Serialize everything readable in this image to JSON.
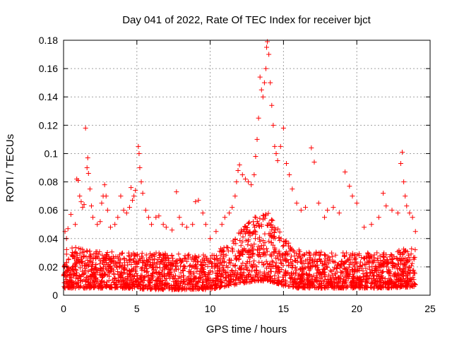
{
  "chart_data": {
    "type": "scatter",
    "title": "Day 041 of 2022, Rate Of TEC Index for receiver bjct",
    "xlabel": "GPS time / hours",
    "ylabel": "ROTI / TECUs",
    "xlim": [
      0,
      25
    ],
    "ylim": [
      0,
      0.18
    ],
    "xticks": [
      0,
      5,
      10,
      15,
      20,
      25
    ],
    "xtick_labels": [
      "0",
      "5",
      "10",
      "15",
      "20",
      "25"
    ],
    "yticks": [
      0,
      0.02,
      0.04,
      0.06,
      0.08,
      0.1,
      0.12,
      0.14,
      0.16,
      0.18
    ],
    "ytick_labels": [
      "0",
      "0.02",
      "0.04",
      "0.06",
      "0.08",
      "0.1",
      "0.12",
      "0.14",
      "0.16",
      "0.18"
    ],
    "grid": true,
    "marker": "+",
    "marker_color": "#ff0000",
    "series": [
      {
        "points": [
          [
            0.1,
            0.045
          ],
          [
            0.2,
            0.04
          ],
          [
            0.3,
            0.047
          ],
          [
            0.5,
            0.057
          ],
          [
            0.8,
            0.05
          ],
          [
            0.9,
            0.082
          ],
          [
            1.0,
            0.081
          ],
          [
            1.1,
            0.07
          ],
          [
            1.2,
            0.066
          ],
          [
            1.3,
            0.062
          ],
          [
            1.4,
            0.064
          ],
          [
            1.5,
            0.118
          ],
          [
            1.6,
            0.09
          ],
          [
            1.65,
            0.097
          ],
          [
            1.7,
            0.086
          ],
          [
            1.8,
            0.075
          ],
          [
            1.9,
            0.063
          ],
          [
            2.0,
            0.055
          ],
          [
            2.3,
            0.05
          ],
          [
            2.5,
            0.052
          ],
          [
            2.6,
            0.065
          ],
          [
            2.7,
            0.07
          ],
          [
            2.8,
            0.078
          ],
          [
            2.9,
            0.07
          ],
          [
            3.0,
            0.06
          ],
          [
            3.2,
            0.048
          ],
          [
            3.5,
            0.05
          ],
          [
            3.7,
            0.055
          ],
          [
            3.9,
            0.07
          ],
          [
            4.1,
            0.06
          ],
          [
            4.3,
            0.058
          ],
          [
            4.5,
            0.062
          ],
          [
            4.6,
            0.076
          ],
          [
            4.7,
            0.067
          ],
          [
            4.8,
            0.07
          ],
          [
            4.9,
            0.074
          ],
          [
            5.1,
            0.105
          ],
          [
            5.15,
            0.1
          ],
          [
            5.2,
            0.09
          ],
          [
            5.3,
            0.08
          ],
          [
            5.4,
            0.072
          ],
          [
            5.6,
            0.06
          ],
          [
            5.8,
            0.055
          ],
          [
            6.0,
            0.05
          ],
          [
            6.3,
            0.055
          ],
          [
            6.5,
            0.056
          ],
          [
            6.8,
            0.05
          ],
          [
            7.0,
            0.048
          ],
          [
            7.4,
            0.046
          ],
          [
            7.7,
            0.073
          ],
          [
            7.9,
            0.055
          ],
          [
            8.1,
            0.05
          ],
          [
            8.4,
            0.048
          ],
          [
            8.8,
            0.05
          ],
          [
            9.0,
            0.066
          ],
          [
            9.2,
            0.067
          ],
          [
            9.5,
            0.058
          ],
          [
            9.7,
            0.05
          ],
          [
            10.0,
            0.04
          ],
          [
            10.4,
            0.045
          ],
          [
            10.8,
            0.05
          ],
          [
            11.0,
            0.055
          ],
          [
            11.3,
            0.058
          ],
          [
            11.5,
            0.062
          ],
          [
            11.7,
            0.07
          ],
          [
            11.8,
            0.08
          ],
          [
            11.9,
            0.088
          ],
          [
            12.0,
            0.092
          ],
          [
            12.2,
            0.085
          ],
          [
            12.4,
            0.082
          ],
          [
            12.6,
            0.08
          ],
          [
            12.8,
            0.078
          ],
          [
            13.0,
            0.085
          ],
          [
            13.1,
            0.098
          ],
          [
            13.2,
            0.11
          ],
          [
            13.3,
            0.125
          ],
          [
            13.4,
            0.154
          ],
          [
            13.5,
            0.145
          ],
          [
            13.6,
            0.14
          ],
          [
            13.7,
            0.15
          ],
          [
            13.8,
            0.16
          ],
          [
            13.85,
            0.175
          ],
          [
            13.9,
            0.179
          ],
          [
            14.0,
            0.17
          ],
          [
            14.1,
            0.15
          ],
          [
            14.2,
            0.134
          ],
          [
            14.3,
            0.12
          ],
          [
            14.4,
            0.105
          ],
          [
            14.5,
            0.1
          ],
          [
            14.6,
            0.095
          ],
          [
            14.8,
            0.105
          ],
          [
            15.0,
            0.118
          ],
          [
            15.2,
            0.093
          ],
          [
            15.4,
            0.085
          ],
          [
            15.6,
            0.075
          ],
          [
            15.9,
            0.065
          ],
          [
            16.2,
            0.06
          ],
          [
            16.5,
            0.062
          ],
          [
            16.9,
            0.104
          ],
          [
            17.1,
            0.094
          ],
          [
            17.4,
            0.065
          ],
          [
            17.8,
            0.055
          ],
          [
            18.0,
            0.06
          ],
          [
            18.4,
            0.062
          ],
          [
            18.8,
            0.058
          ],
          [
            19.2,
            0.087
          ],
          [
            19.5,
            0.077
          ],
          [
            19.7,
            0.07
          ],
          [
            20.0,
            0.065
          ],
          [
            20.5,
            0.048
          ],
          [
            21.0,
            0.05
          ],
          [
            21.5,
            0.055
          ],
          [
            21.8,
            0.072
          ],
          [
            22.0,
            0.063
          ],
          [
            22.4,
            0.06
          ],
          [
            22.8,
            0.058
          ],
          [
            23.0,
            0.093
          ],
          [
            23.1,
            0.101
          ],
          [
            23.2,
            0.08
          ],
          [
            23.3,
            0.07
          ],
          [
            23.4,
            0.063
          ],
          [
            23.6,
            0.058
          ],
          [
            23.8,
            0.055
          ],
          [
            24.0,
            0.045
          ]
        ]
      }
    ],
    "dense_band": {
      "description_points": [
        [
          0,
          0.005,
          0.035
        ],
        [
          2,
          0.005,
          0.032
        ],
        [
          4,
          0.005,
          0.03
        ],
        [
          6,
          0.004,
          0.03
        ],
        [
          8,
          0.004,
          0.03
        ],
        [
          10,
          0.004,
          0.028
        ],
        [
          11,
          0.006,
          0.035
        ],
        [
          12,
          0.008,
          0.045
        ],
        [
          13,
          0.01,
          0.055
        ],
        [
          14,
          0.01,
          0.06
        ],
        [
          15,
          0.007,
          0.04
        ],
        [
          16,
          0.005,
          0.032
        ],
        [
          18,
          0.005,
          0.03
        ],
        [
          20,
          0.005,
          0.03
        ],
        [
          22,
          0.005,
          0.03
        ],
        [
          24,
          0.006,
          0.035
        ]
      ]
    }
  }
}
